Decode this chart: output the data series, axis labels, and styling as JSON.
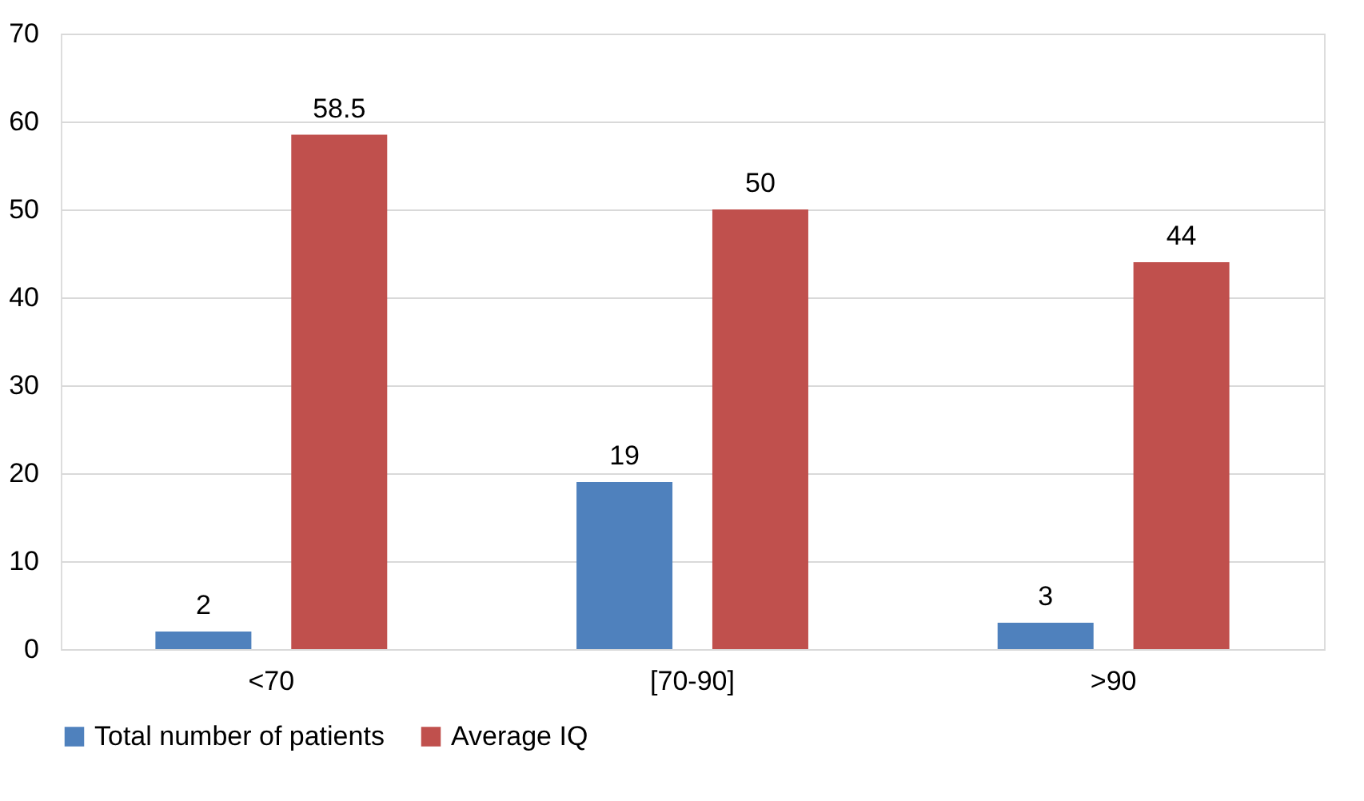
{
  "chart_data": {
    "type": "bar",
    "categories": [
      "<70",
      "[70-90]",
      ">90"
    ],
    "series": [
      {
        "name": "Total number of patients",
        "color": "#4f81bd",
        "values": [
          2,
          19,
          3
        ]
      },
      {
        "name": "Average IQ",
        "color": "#c0504d",
        "values": [
          58.5,
          50,
          44
        ]
      }
    ],
    "ylim": [
      0,
      70
    ],
    "yticks": [
      0,
      10,
      20,
      30,
      40,
      50,
      60,
      70
    ],
    "grid": "y",
    "legend": "bottom",
    "data_labels": true
  }
}
